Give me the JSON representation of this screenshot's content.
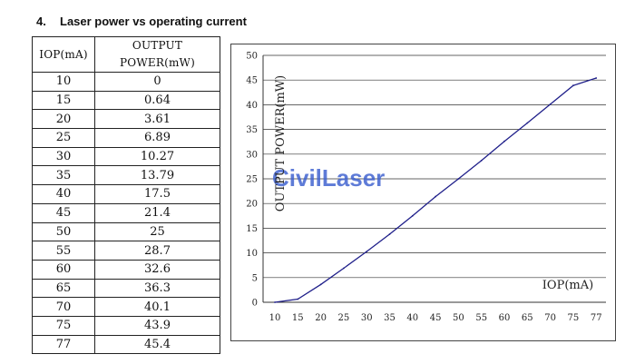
{
  "heading": {
    "number": "4.",
    "title": "Laser power vs operating current"
  },
  "table": {
    "headers": [
      "IOP(mA)",
      "OUTPUT POWER(mW)"
    ],
    "rows": [
      [
        "10",
        "0"
      ],
      [
        "15",
        "0.64"
      ],
      [
        "20",
        "3.61"
      ],
      [
        "25",
        "6.89"
      ],
      [
        "30",
        "10.27"
      ],
      [
        "35",
        "13.79"
      ],
      [
        "40",
        "17.5"
      ],
      [
        "45",
        "21.4"
      ],
      [
        "50",
        "25"
      ],
      [
        "55",
        "28.7"
      ],
      [
        "60",
        "32.6"
      ],
      [
        "65",
        "36.3"
      ],
      [
        "70",
        "40.1"
      ],
      [
        "75",
        "43.9"
      ],
      [
        "77",
        "45.4"
      ]
    ]
  },
  "watermark": "CivilLaser",
  "chart_data": {
    "type": "line",
    "xlabel": "IOP(mA)",
    "ylabel": "OUTPUT POWER(mW)",
    "xticks": [
      "10",
      "15",
      "20",
      "25",
      "30",
      "35",
      "40",
      "45",
      "50",
      "55",
      "60",
      "65",
      "70",
      "75",
      "77"
    ],
    "yticks": [
      "0",
      "5",
      "10",
      "15",
      "20",
      "25",
      "30",
      "35",
      "40",
      "45",
      "50"
    ],
    "ylim": [
      0,
      50
    ],
    "grid": "horizontal",
    "line_color": "#1f1f8a",
    "series": [
      {
        "x": [
          10,
          15,
          20,
          25,
          30,
          35,
          40,
          45,
          50,
          55,
          60,
          65,
          70,
          75,
          77
        ],
        "values": [
          0,
          0.64,
          3.61,
          6.89,
          10.27,
          13.79,
          17.5,
          21.4,
          25,
          28.7,
          32.6,
          36.3,
          40.1,
          43.9,
          45.4
        ]
      }
    ]
  }
}
